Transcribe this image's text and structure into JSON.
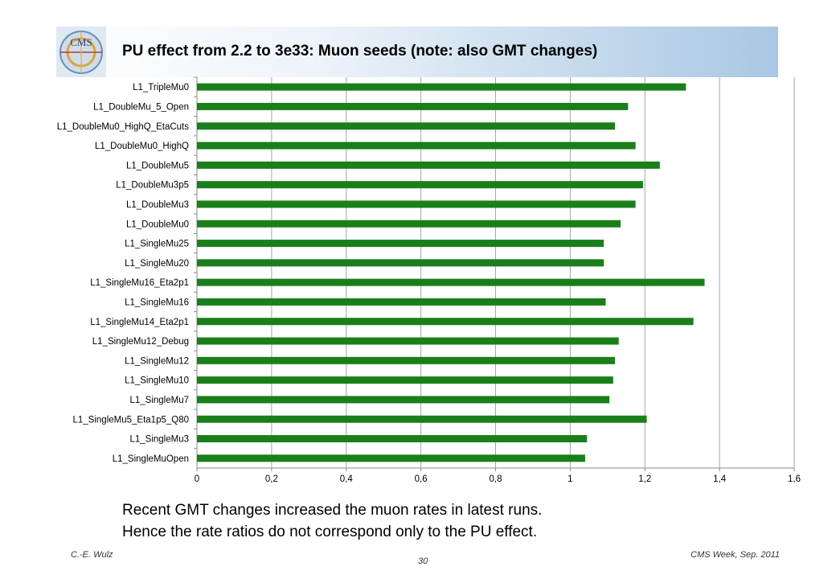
{
  "slide": {
    "title": "PU effect from 2.2 to 3e33: Muon seeds (note: also GMT changes)",
    "note_line1": "Recent GMT changes increased the muon  rates in latest runs.",
    "note_line2": "Hence the rate ratios do not correspond only to the PU effect.",
    "footer_left": "C.-E. Wulz",
    "footer_right": "CMS Week, Sep. 2011",
    "page_number": "30",
    "logo_text": "CMS",
    "colors": {
      "bar": "#1a7f1a",
      "header_end": "#a9c7e3",
      "grid": "#a6a6a6"
    }
  },
  "chart_data": {
    "type": "bar",
    "orientation": "horizontal",
    "categories": [
      "L1_TripleMu0",
      "L1_DoubleMu_5_Open",
      "L1_DoubleMu0_HighQ_EtaCuts",
      "L1_DoubleMu0_HighQ",
      "L1_DoubleMu5",
      "L1_DoubleMu3p5",
      "L1_DoubleMu3",
      "L1_DoubleMu0",
      "L1_SingleMu25",
      "L1_SingleMu20",
      "L1_SingleMu16_Eta2p1",
      "L1_SingleMu16",
      "L1_SingleMu14_Eta2p1",
      "L1_SingleMu12_Debug",
      "L1_SingleMu12",
      "L1_SingleMu10",
      "L1_SingleMu7",
      "L1_SingleMu5_Eta1p5_Q80",
      "L1_SingleMu3",
      "L1_SingleMuOpen"
    ],
    "values": [
      1.31,
      1.155,
      1.12,
      1.175,
      1.24,
      1.195,
      1.175,
      1.135,
      1.09,
      1.09,
      1.36,
      1.095,
      1.33,
      1.13,
      1.12,
      1.115,
      1.105,
      1.205,
      1.045,
      1.04
    ],
    "xlim": [
      0,
      1.6
    ],
    "xticks": [
      "0",
      "0,2",
      "0,4",
      "0,6",
      "0,8",
      "1",
      "1,2",
      "1,4",
      "1,6"
    ],
    "xtick_values": [
      0,
      0.2,
      0.4,
      0.6,
      0.8,
      1,
      1.2,
      1.4,
      1.6
    ],
    "grid": "vertical",
    "legend": "none"
  }
}
